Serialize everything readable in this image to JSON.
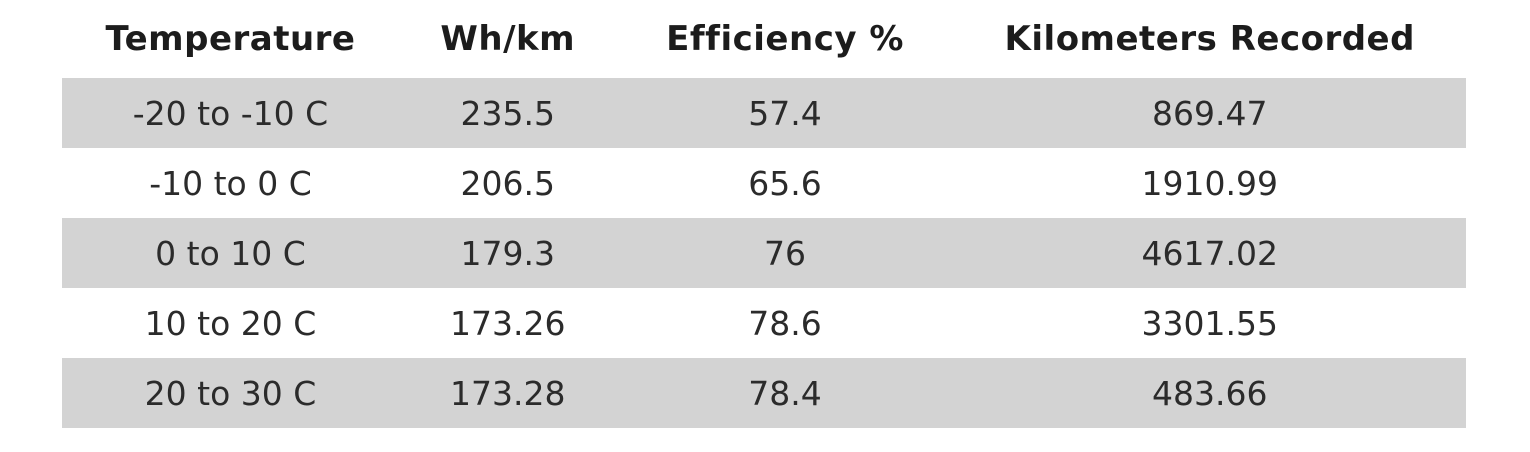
{
  "chart_data": {
    "type": "table",
    "title": "",
    "columns": [
      "Temperature",
      "Wh/km",
      "Efficiency %",
      "Kilometers Recorded"
    ],
    "rows": [
      {
        "temperature": "-20 to -10 C",
        "wh_per_km": "235.5",
        "efficiency_pct": "57.4",
        "kilometers_recorded": "869.47"
      },
      {
        "temperature": "-10 to 0 C",
        "wh_per_km": "206.5",
        "efficiency_pct": "65.6",
        "kilometers_recorded": "1910.99"
      },
      {
        "temperature": "0 to 10 C",
        "wh_per_km": "179.3",
        "efficiency_pct": "76",
        "kilometers_recorded": "4617.02"
      },
      {
        "temperature": "10 to 20 C",
        "wh_per_km": "173.26",
        "efficiency_pct": "78.6",
        "kilometers_recorded": "3301.55"
      },
      {
        "temperature": "20 to 30 C",
        "wh_per_km": "173.28",
        "efficiency_pct": "78.4",
        "kilometers_recorded": "483.66"
      }
    ]
  },
  "colors": {
    "row_stripe": "#d3d3d3",
    "row_plain": "#ffffff",
    "header_text": "#1c1c1c",
    "cell_text": "#2b2b2b"
  }
}
